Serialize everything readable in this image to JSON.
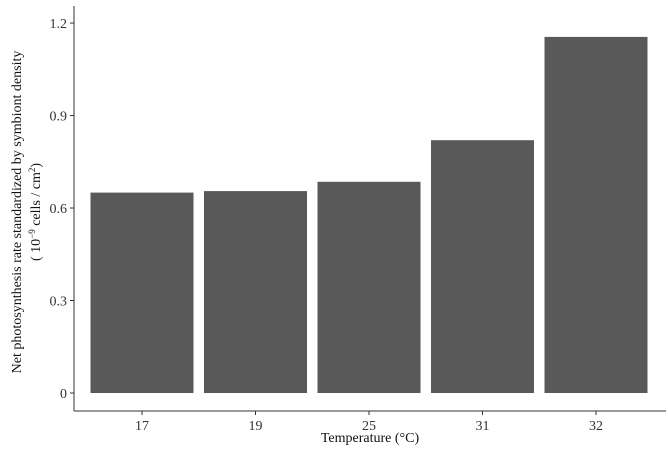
{
  "chart_data": {
    "type": "bar",
    "categories": [
      "17",
      "19",
      "25",
      "31",
      "32"
    ],
    "values": [
      0.65,
      0.655,
      0.685,
      0.82,
      1.155
    ],
    "title": "",
    "xlabel": "Temperature (°C)",
    "ylabel_line1": "Net photosynthesis rate standardized by symbiont density",
    "ylabel_line2_prefix": "( 10",
    "ylabel_line2_exp": "−9",
    "ylabel_line2_mid": " cells / cm",
    "ylabel_line2_exp2": "2",
    "ylabel_line2_suffix": ")",
    "ylim": [
      0,
      1.25
    ],
    "yticks": [
      0,
      0.3,
      0.6,
      0.9,
      1.2
    ],
    "ytick_labels": [
      "0",
      "0.3",
      "0.6",
      "0.9",
      "1.2"
    ],
    "grid": false,
    "bar_color": "#595959",
    "axis_color": "#333333"
  }
}
